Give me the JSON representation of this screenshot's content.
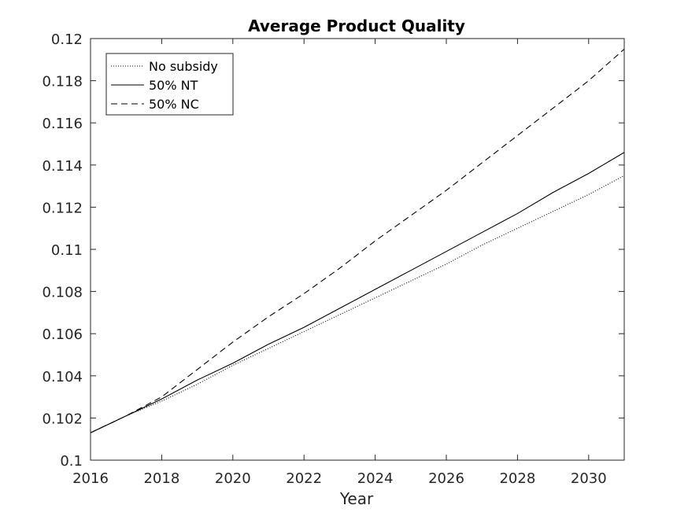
{
  "chart_data": {
    "type": "line",
    "title": "Average Product Quality",
    "xlabel": "Year",
    "ylabel": "",
    "xlim": [
      2016,
      2031
    ],
    "ylim": [
      0.1,
      0.12
    ],
    "xticks": [
      2016,
      2018,
      2020,
      2022,
      2024,
      2026,
      2028,
      2030
    ],
    "xtick_labels": [
      "2016",
      "2018",
      "2020",
      "2022",
      "2024",
      "2026",
      "2028",
      "2030"
    ],
    "yticks": [
      0.1,
      0.102,
      0.104,
      0.106,
      0.108,
      0.11,
      0.112,
      0.114,
      0.116,
      0.118,
      0.12
    ],
    "ytick_labels": [
      "0.1",
      "0.102",
      "0.104",
      "0.106",
      "0.108",
      "0.11",
      "0.112",
      "0.114",
      "0.116",
      "0.118",
      "0.12"
    ],
    "grid": false,
    "legend_position": "top-left",
    "series": [
      {
        "name": "No subsidy",
        "style": "dotted",
        "color": "#000000",
        "x": [
          2016,
          2017,
          2018,
          2019,
          2020,
          2021,
          2022,
          2023,
          2024,
          2025,
          2026,
          2027,
          2028,
          2029,
          2030,
          2031
        ],
        "y": [
          0.1013,
          0.1021,
          0.1028,
          0.1036,
          0.1045,
          0.1053,
          0.1061,
          0.1069,
          0.1077,
          0.1085,
          0.1093,
          0.1102,
          0.111,
          0.1118,
          0.1126,
          0.1135
        ]
      },
      {
        "name": "50% NT",
        "style": "solid",
        "color": "#000000",
        "x": [
          2016,
          2017,
          2018,
          2019,
          2020,
          2021,
          2022,
          2023,
          2024,
          2025,
          2026,
          2027,
          2028,
          2029,
          2030,
          2031
        ],
        "y": [
          0.1013,
          0.1021,
          0.1029,
          0.1038,
          0.1046,
          0.1055,
          0.1063,
          0.1072,
          0.1081,
          0.109,
          0.1099,
          0.1108,
          0.1117,
          0.1127,
          0.1136,
          0.1146
        ]
      },
      {
        "name": "50% NC",
        "style": "dashed",
        "color": "#000000",
        "x": [
          2016,
          2017,
          2018,
          2019,
          2020,
          2021,
          2022,
          2023,
          2024,
          2025,
          2026,
          2027,
          2028,
          2029,
          2030,
          2031
        ],
        "y": [
          0.1013,
          0.1021,
          0.103,
          0.1043,
          0.1056,
          0.1068,
          0.1079,
          0.1091,
          0.1104,
          0.1116,
          0.1128,
          0.1141,
          0.1154,
          0.1167,
          0.118,
          0.1195
        ]
      }
    ]
  }
}
